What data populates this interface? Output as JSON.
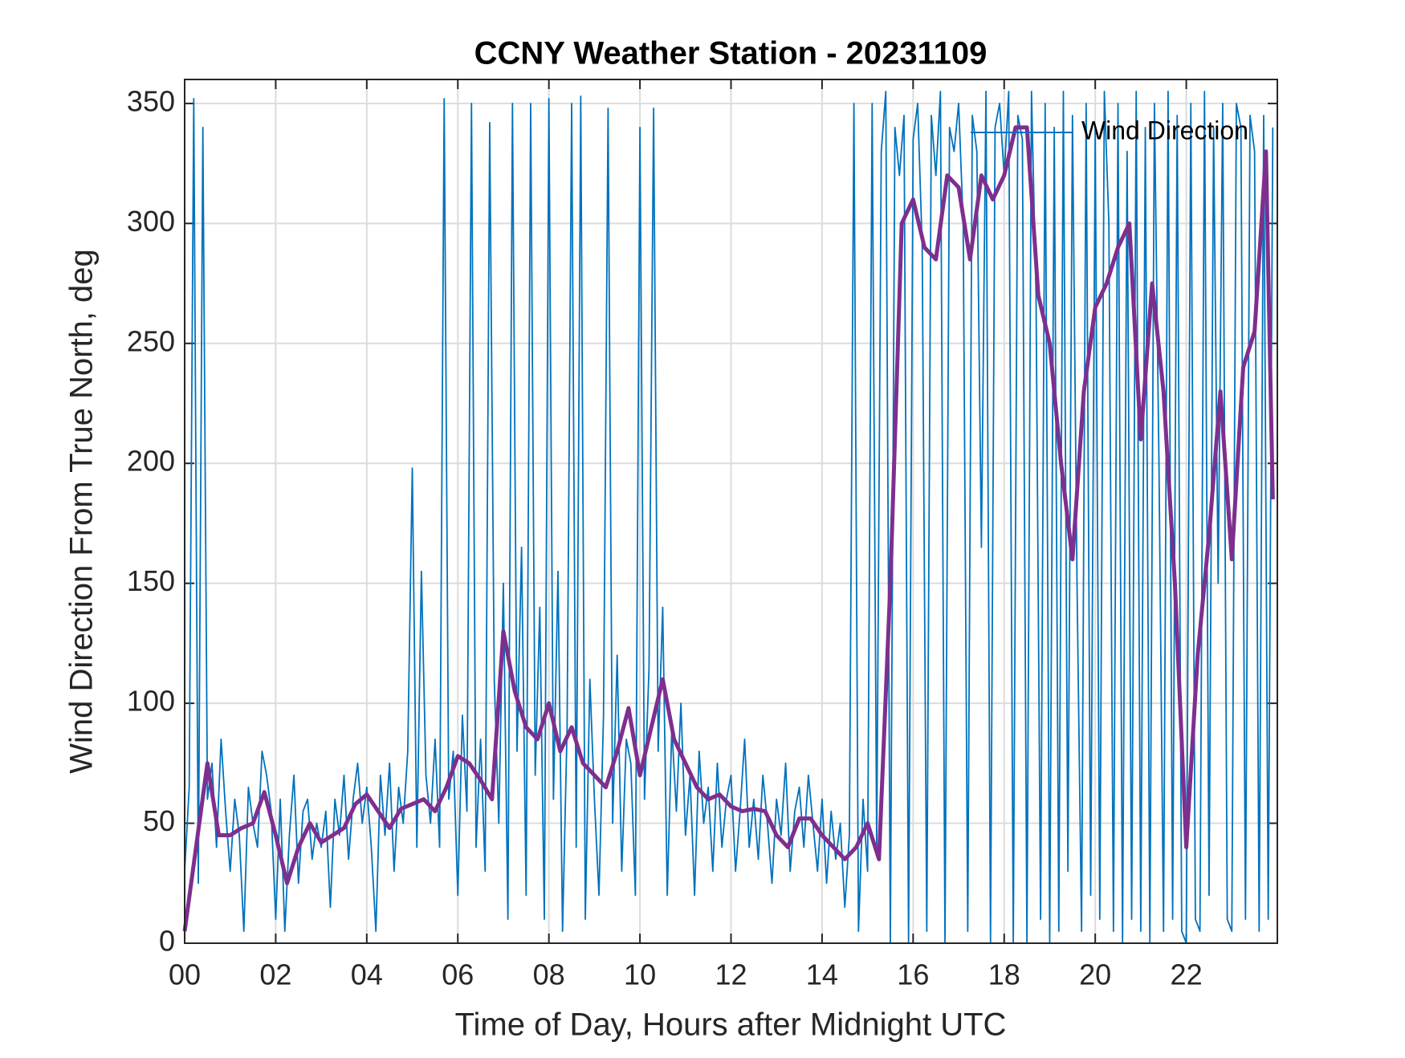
{
  "chart_data": {
    "type": "line",
    "title": "CCNY Weather Station - 20231109",
    "xlabel": "Time of Day, Hours after Midnight UTC",
    "ylabel": "Wind Direction From True North, deg",
    "xlim": [
      0,
      24
    ],
    "ylim": [
      0,
      360
    ],
    "xticks": [
      {
        "value": 0,
        "label": "00"
      },
      {
        "value": 2,
        "label": "02"
      },
      {
        "value": 4,
        "label": "04"
      },
      {
        "value": 6,
        "label": "06"
      },
      {
        "value": 8,
        "label": "08"
      },
      {
        "value": 10,
        "label": "10"
      },
      {
        "value": 12,
        "label": "12"
      },
      {
        "value": 14,
        "label": "14"
      },
      {
        "value": 16,
        "label": "16"
      },
      {
        "value": 18,
        "label": "18"
      },
      {
        "value": 20,
        "label": "20"
      },
      {
        "value": 22,
        "label": "22"
      }
    ],
    "yticks": [
      0,
      50,
      100,
      150,
      200,
      250,
      300,
      350
    ],
    "grid": true,
    "legend": "northeast",
    "series": [
      {
        "name": "Wind Direction",
        "color": "#0072bd",
        "x": [
          0.0,
          0.1,
          0.2,
          0.3,
          0.4,
          0.5,
          0.6,
          0.7,
          0.8,
          0.9,
          1.0,
          1.1,
          1.2,
          1.3,
          1.4,
          1.5,
          1.6,
          1.7,
          1.8,
          1.9,
          2.0,
          2.1,
          2.2,
          2.3,
          2.4,
          2.5,
          2.6,
          2.7,
          2.8,
          2.9,
          3.0,
          3.1,
          3.2,
          3.3,
          3.4,
          3.5,
          3.6,
          3.7,
          3.8,
          3.9,
          4.0,
          4.1,
          4.2,
          4.3,
          4.4,
          4.5,
          4.6,
          4.7,
          4.8,
          4.9,
          5.0,
          5.1,
          5.2,
          5.3,
          5.4,
          5.5,
          5.6,
          5.7,
          5.8,
          5.9,
          6.0,
          6.1,
          6.2,
          6.3,
          6.4,
          6.5,
          6.6,
          6.7,
          6.8,
          6.9,
          7.0,
          7.1,
          7.2,
          7.3,
          7.4,
          7.5,
          7.6,
          7.7,
          7.8,
          7.9,
          8.0,
          8.1,
          8.2,
          8.3,
          8.4,
          8.5,
          8.6,
          8.7,
          8.8,
          8.9,
          9.0,
          9.1,
          9.2,
          9.3,
          9.4,
          9.5,
          9.6,
          9.7,
          9.8,
          9.9,
          10.0,
          10.1,
          10.2,
          10.3,
          10.4,
          10.5,
          10.6,
          10.7,
          10.8,
          10.9,
          11.0,
          11.1,
          11.2,
          11.3,
          11.4,
          11.5,
          11.6,
          11.7,
          11.8,
          11.9,
          12.0,
          12.1,
          12.2,
          12.3,
          12.4,
          12.5,
          12.6,
          12.7,
          12.8,
          12.9,
          13.0,
          13.1,
          13.2,
          13.3,
          13.4,
          13.5,
          13.6,
          13.7,
          13.8,
          13.9,
          14.0,
          14.1,
          14.2,
          14.3,
          14.4,
          14.5,
          14.6,
          14.7,
          14.8,
          14.9,
          15.0,
          15.1,
          15.2,
          15.3,
          15.4,
          15.5,
          15.6,
          15.7,
          15.8,
          15.9,
          16.0,
          16.1,
          16.2,
          16.3,
          16.4,
          16.5,
          16.6,
          16.7,
          16.8,
          16.9,
          17.0,
          17.1,
          17.2,
          17.3,
          17.4,
          17.5,
          17.6,
          17.7,
          17.8,
          17.9,
          18.0,
          18.1,
          18.2,
          18.3,
          18.4,
          18.5,
          18.6,
          18.7,
          18.8,
          18.9,
          19.0,
          19.1,
          19.2,
          19.3,
          19.4,
          19.5,
          19.6,
          19.7,
          19.8,
          19.9,
          20.0,
          20.1,
          20.2,
          20.3,
          20.4,
          20.5,
          20.6,
          20.7,
          20.8,
          20.9,
          21.0,
          21.1,
          21.2,
          21.3,
          21.4,
          21.5,
          21.6,
          21.7,
          21.8,
          21.9,
          22.0,
          22.1,
          22.2,
          22.3,
          22.4,
          22.5,
          22.6,
          22.7,
          22.8,
          22.9,
          23.0,
          23.1,
          23.2,
          23.3,
          23.4,
          23.5,
          23.6,
          23.7,
          23.8,
          23.9
        ],
        "values": [
          30,
          65,
          352,
          25,
          340,
          60,
          75,
          40,
          85,
          55,
          30,
          60,
          45,
          5,
          65,
          50,
          40,
          80,
          70,
          55,
          10,
          60,
          5,
          45,
          70,
          25,
          55,
          60,
          35,
          50,
          40,
          55,
          15,
          60,
          45,
          70,
          35,
          60,
          75,
          50,
          65,
          40,
          5,
          70,
          45,
          75,
          30,
          65,
          50,
          80,
          198,
          40,
          155,
          70,
          50,
          85,
          40,
          352,
          60,
          80,
          20,
          95,
          55,
          350,
          40,
          85,
          30,
          342,
          110,
          50,
          150,
          10,
          350,
          80,
          165,
          20,
          350,
          70,
          140,
          10,
          352,
          60,
          155,
          5,
          90,
          350,
          40,
          353,
          10,
          110,
          60,
          20,
          95,
          348,
          50,
          120,
          30,
          85,
          75,
          20,
          340,
          60,
          115,
          348,
          80,
          140,
          20,
          90,
          55,
          100,
          45,
          70,
          20,
          80,
          50,
          65,
          30,
          75,
          40,
          60,
          70,
          30,
          55,
          85,
          40,
          60,
          35,
          70,
          50,
          25,
          60,
          45,
          75,
          30,
          55,
          65,
          40,
          70,
          50,
          30,
          60,
          25,
          55,
          35,
          50,
          15,
          45,
          350,
          5,
          60,
          30,
          350,
          40,
          330,
          355,
          0,
          340,
          320,
          345,
          0,
          335,
          350,
          290,
          5,
          345,
          320,
          355,
          0,
          340,
          330,
          350,
          300,
          5,
          345,
          330,
          165,
          355,
          0,
          340,
          350,
          320,
          355,
          0,
          345,
          335,
          0,
          355,
          270,
          10,
          350,
          0,
          340,
          5,
          355,
          30,
          345,
          150,
          5,
          350,
          20,
          340,
          10,
          355,
          300,
          5,
          350,
          0,
          330,
          10,
          355,
          5,
          340,
          0,
          350,
          200,
          5,
          355,
          10,
          345,
          5,
          0,
          350,
          10,
          5,
          355,
          20,
          340,
          150,
          350,
          10,
          5,
          350,
          340,
          10,
          345,
          330,
          5,
          345,
          10,
          340
        ]
      },
      {
        "color": "#7e2f8e",
        "x": [
          0,
          0.25,
          0.5,
          0.75,
          1,
          1.25,
          1.5,
          1.75,
          2,
          2.25,
          2.5,
          2.75,
          3,
          3.25,
          3.5,
          3.75,
          4,
          4.25,
          4.5,
          4.75,
          5,
          5.25,
          5.5,
          5.75,
          6,
          6.25,
          6.5,
          6.75,
          7,
          7.25,
          7.5,
          7.75,
          8,
          8.25,
          8.5,
          8.75,
          9,
          9.25,
          9.5,
          9.75,
          10,
          10.25,
          10.5,
          10.75,
          11,
          11.25,
          11.5,
          11.75,
          12,
          12.25,
          12.5,
          12.75,
          13,
          13.25,
          13.5,
          13.75,
          14,
          14.25,
          14.5,
          14.75,
          15,
          15.25,
          15.5,
          15.75,
          16,
          16.25,
          16.5,
          16.75,
          17,
          17.25,
          17.5,
          17.75,
          18,
          18.25,
          18.5,
          18.75,
          19,
          19.25,
          19.5,
          19.75,
          20,
          20.25,
          20.5,
          20.75,
          21,
          21.25,
          21.5,
          21.75,
          22,
          22.25,
          22.5,
          22.75,
          23,
          23.25,
          23.5,
          23.75,
          23.9
        ],
        "values": [
          5,
          40,
          75,
          45,
          45,
          48,
          50,
          63,
          45,
          25,
          40,
          50,
          42,
          45,
          48,
          58,
          62,
          55,
          48,
          56,
          58,
          60,
          55,
          65,
          78,
          75,
          68,
          60,
          130,
          105,
          90,
          85,
          100,
          80,
          90,
          75,
          70,
          65,
          80,
          98,
          70,
          90,
          110,
          85,
          75,
          65,
          60,
          62,
          57,
          55,
          56,
          55,
          45,
          40,
          52,
          52,
          45,
          40,
          35,
          40,
          50,
          35,
          150,
          300,
          310,
          290,
          285,
          320,
          315,
          285,
          320,
          310,
          320,
          340,
          340,
          270,
          250,
          200,
          160,
          230,
          265,
          275,
          290,
          300,
          210,
          275,
          230,
          150,
          40,
          120,
          170,
          230,
          160,
          240,
          255,
          330,
          185
        ]
      }
    ]
  }
}
